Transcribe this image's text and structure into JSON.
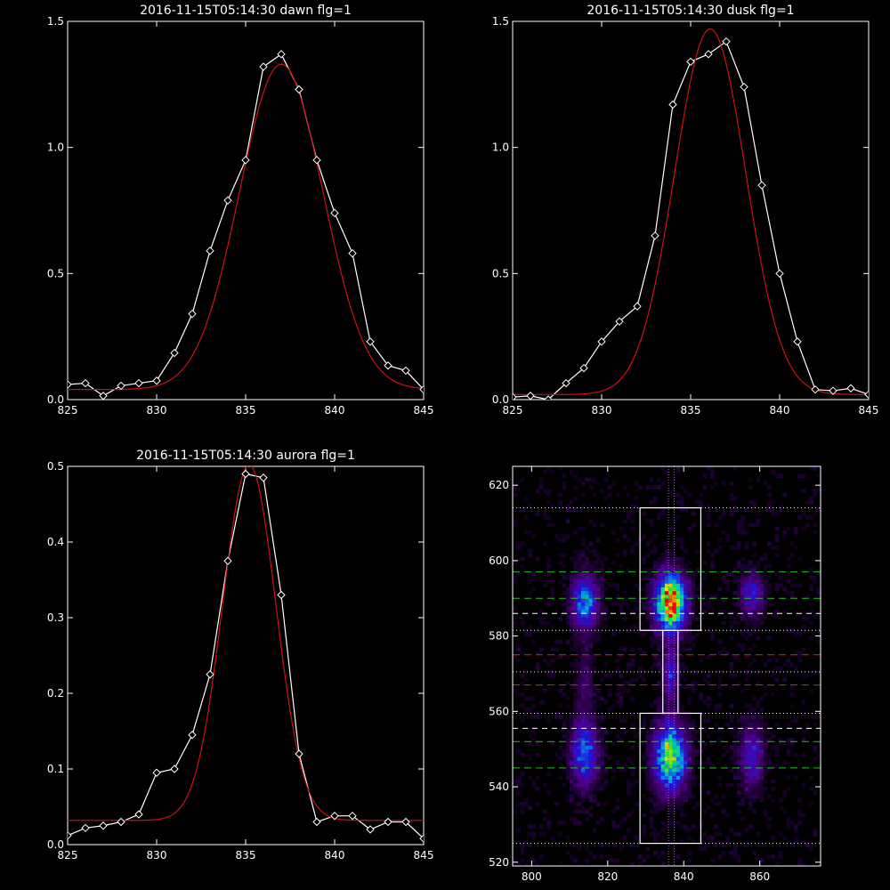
{
  "colors": {
    "background": "#000000",
    "axis": "#ffffff",
    "data_line": "#ffffff",
    "fit_line": "#d01010",
    "green_line": "#22c022",
    "red_line": "#e02020",
    "white_dash": "#ffffff",
    "magenta_dot": "#c040c0"
  },
  "chart_data": [
    {
      "type": "line",
      "title": "2016-11-15T05:14:30 dawn flg=1",
      "xlim": [
        825,
        845
      ],
      "ylim": [
        0,
        1.5
      ],
      "xticks": [
        825,
        830,
        835,
        840,
        845
      ],
      "xtick_labels": [
        "825",
        "830",
        "835",
        "840",
        "845"
      ],
      "yticks": [
        0,
        0.5,
        1.0,
        1.5
      ],
      "ytick_labels": [
        "0.0",
        "0.5",
        "1.0",
        "1.5"
      ],
      "data": {
        "x": [
          825,
          826,
          827,
          828,
          829,
          830,
          831,
          832,
          833,
          834,
          835,
          836,
          837,
          838,
          839,
          840,
          841,
          842,
          843,
          844,
          845
        ],
        "y": [
          0.06,
          0.065,
          0.015,
          0.055,
          0.065,
          0.075,
          0.185,
          0.34,
          0.59,
          0.79,
          0.95,
          1.32,
          1.37,
          1.23,
          0.95,
          0.74,
          0.58,
          0.23,
          0.135,
          0.115,
          0.04
        ],
        "marker": "diamond"
      },
      "fit": {
        "model": "gaussian",
        "amplitude": 1.29,
        "center": 837.0,
        "sigma": 2.35,
        "offset": 0.04
      }
    },
    {
      "type": "line",
      "title": "2016-11-15T05:14:30 dusk flg=1",
      "xlim": [
        825,
        845
      ],
      "ylim": [
        0,
        1.5
      ],
      "xticks": [
        825,
        830,
        835,
        840,
        845
      ],
      "xtick_labels": [
        "825",
        "830",
        "835",
        "840",
        "845"
      ],
      "yticks": [
        0,
        0.5,
        1.0,
        1.5
      ],
      "ytick_labels": [
        "0.0",
        "0.5",
        "1.0",
        "1.5"
      ],
      "data": {
        "x": [
          825,
          826,
          827,
          828,
          829,
          830,
          831,
          832,
          833,
          834,
          835,
          836,
          837,
          838,
          839,
          840,
          841,
          842,
          843,
          844,
          845
        ],
        "y": [
          0.01,
          0.015,
          0.0,
          0.065,
          0.125,
          0.23,
          0.31,
          0.37,
          0.65,
          1.17,
          1.34,
          1.37,
          1.42,
          1.24,
          0.85,
          0.5,
          0.23,
          0.04,
          0.035,
          0.045,
          0.02
        ],
        "marker": "diamond"
      },
      "fit": {
        "model": "gaussian",
        "amplitude": 1.45,
        "center": 836.1,
        "sigma": 2.0,
        "offset": 0.02
      }
    },
    {
      "type": "line",
      "title": "2016-11-15T05:14:30 aurora flg=1",
      "xlim": [
        825,
        845
      ],
      "ylim": [
        0,
        0.5
      ],
      "xticks": [
        825,
        830,
        835,
        840,
        845
      ],
      "xtick_labels": [
        "825",
        "830",
        "835",
        "840",
        "845"
      ],
      "yticks": [
        0,
        0.1,
        0.2,
        0.3,
        0.4,
        0.5
      ],
      "ytick_labels": [
        "0.0",
        "0.1",
        "0.2",
        "0.3",
        "0.4",
        "0.5"
      ],
      "data": {
        "x": [
          825,
          826,
          827,
          828,
          829,
          830,
          831,
          832,
          833,
          834,
          835,
          836,
          837,
          838,
          839,
          840,
          841,
          842,
          843,
          844,
          845
        ],
        "y": [
          0.012,
          0.022,
          0.025,
          0.03,
          0.04,
          0.095,
          0.1,
          0.145,
          0.225,
          0.375,
          0.49,
          0.485,
          0.33,
          0.12,
          0.03,
          0.038,
          0.038,
          0.02,
          0.03,
          0.03,
          0.008
        ],
        "marker": "diamond"
      },
      "fit": {
        "model": "gaussian",
        "amplitude": 0.47,
        "center": 835.2,
        "sigma": 1.5,
        "offset": 0.032
      }
    },
    {
      "type": "heatmap",
      "xlim": [
        795,
        876
      ],
      "ylim": [
        519,
        625
      ],
      "xticks": [
        800,
        820,
        840,
        860
      ],
      "xtick_labels": [
        "800",
        "820",
        "840",
        "860"
      ],
      "yticks": [
        520,
        540,
        560,
        580,
        600,
        620
      ],
      "ytick_labels": [
        "520",
        "540",
        "560",
        "580",
        "600",
        "620"
      ],
      "colormap": "rainbow",
      "blobs": [
        {
          "x": 836.5,
          "y": 589,
          "sx": 2.6,
          "sy": 5.0,
          "amp": 1.0
        },
        {
          "x": 836.5,
          "y": 548,
          "sx": 2.8,
          "sy": 6.0,
          "amp": 0.72
        },
        {
          "x": 836.5,
          "y": 570,
          "sx": 1.4,
          "sy": 5.0,
          "amp": 0.3
        },
        {
          "x": 814,
          "y": 589,
          "sx": 2.3,
          "sy": 5.0,
          "amp": 0.48
        },
        {
          "x": 814,
          "y": 549,
          "sx": 2.4,
          "sy": 6.0,
          "amp": 0.42
        },
        {
          "x": 814,
          "y": 568,
          "sx": 1.5,
          "sy": 5.0,
          "amp": 0.14
        },
        {
          "x": 858,
          "y": 591,
          "sx": 2.2,
          "sy": 4.0,
          "amp": 0.28
        },
        {
          "x": 858,
          "y": 548,
          "sx": 2.2,
          "sy": 6.0,
          "amp": 0.28
        }
      ],
      "boxes": [
        {
          "x0": 828.5,
          "x1": 844.5,
          "y0": 581.5,
          "y1": 614
        },
        {
          "x0": 828.5,
          "x1": 844.5,
          "y0": 525,
          "y1": 559.5
        },
        {
          "x0": 834.5,
          "x1": 838.5,
          "y0": 559.5,
          "y1": 581.5
        }
      ],
      "hlines_dotted": [
        614,
        581.5,
        570.5,
        559.5,
        525
      ],
      "hlines_green_dashed": [
        597,
        590,
        552,
        545
      ],
      "hlines_white_dashed": [
        586,
        555.5
      ],
      "hlines_red_dashed": [
        575,
        567
      ],
      "vlines_magenta_dotted": [
        836,
        837.5
      ]
    }
  ]
}
